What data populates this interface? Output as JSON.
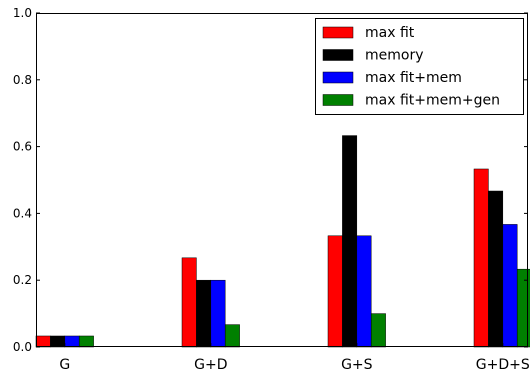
{
  "chart_data": {
    "type": "bar",
    "title": "",
    "xlabel": "",
    "ylabel": "",
    "ylim": [
      0,
      1.0
    ],
    "yticks": [
      "0.0",
      "0.2",
      "0.4",
      "0.6",
      "0.8",
      "1.0"
    ],
    "grid": false,
    "legend_placement": "top-right",
    "categories": [
      "G",
      "G+D",
      "G+S",
      "G+D+S"
    ],
    "series": [
      {
        "name": "max fit",
        "color": "#ff0000",
        "values": [
          0.033,
          0.267,
          0.333,
          0.533
        ]
      },
      {
        "name": "memory",
        "color": "#000000",
        "values": [
          0.033,
          0.2,
          0.633,
          0.467
        ]
      },
      {
        "name": "max fit+mem",
        "color": "#0000ff",
        "values": [
          0.033,
          0.2,
          0.333,
          0.367
        ]
      },
      {
        "name": "max fit+mem+gen",
        "color": "#008000",
        "values": [
          0.033,
          0.067,
          0.1,
          0.233
        ]
      }
    ]
  }
}
